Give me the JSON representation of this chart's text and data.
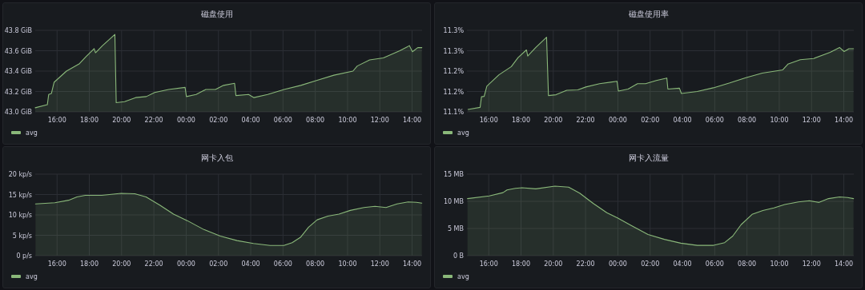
{
  "chart_data": [
    {
      "type": "area",
      "title": "磁盘使用",
      "xlim": [
        "--01-01T14:39",
        "--01-02T14:37"
      ],
      "ylim": [
        43.0,
        43.8
      ],
      "grid": true,
      "legend": "bottom left",
      "xticks": [
        {
          "value": "--01-01T16:00",
          "label": "16:00"
        },
        {
          "value": "--01-01T18:00",
          "label": "18:00"
        },
        {
          "value": "--01-01T20:00",
          "label": "20:00"
        },
        {
          "value": "--01-01T22:00",
          "label": "22:00"
        },
        {
          "value": "--01-02T00:00",
          "label": "00:00"
        },
        {
          "value": "--01-02T02:00",
          "label": "02:00"
        },
        {
          "value": "--01-02T04:00",
          "label": "04:00"
        },
        {
          "value": "--01-02T06:00",
          "label": "06:00"
        },
        {
          "value": "--01-02T08:00",
          "label": "08:00"
        },
        {
          "value": "--01-02T10:00",
          "label": "10:00"
        },
        {
          "value": "--01-02T12:00",
          "label": "12:00"
        },
        {
          "value": "--01-02T14:00",
          "label": "14:00"
        }
      ],
      "yticks": [
        {
          "value": 43.0,
          "label": "43.0 GiB"
        },
        {
          "value": 43.2,
          "label": "43.2 GiB"
        },
        {
          "value": 43.4,
          "label": "43.4 GiB"
        },
        {
          "value": 43.6,
          "label": "43.6 GiB"
        },
        {
          "value": 43.8,
          "label": "43.8 GiB"
        }
      ],
      "series": [
        {
          "name": "avg",
          "color": "#8ab87a",
          "x": [
            "--01-01T14:39",
            "--01-01T15:24",
            "--01-01T15:29",
            "--01-01T15:39",
            "--01-01T15:49",
            "--01-01T16:35",
            "--01-01T17:22",
            "--01-01T17:47",
            "--01-01T18:18",
            "--01-01T18:23",
            "--01-01T18:49",
            "--01-01T19:35",
            "--01-01T19:40",
            "--01-01T20:11",
            "--01-01T20:52",
            "--01-01T21:32",
            "--01-01T22:03",
            "--01-01T22:55",
            "--01-01T23:56",
            "--01-02T00:01",
            "--01-02T00:37",
            "--01-02T01:13",
            "--01-02T01:49",
            "--01-02T02:19",
            "--01-02T03:00",
            "--01-02T03:05",
            "--01-02T03:52",
            "--01-02T04:12",
            "--01-02T05:03",
            "--01-02T06:04",
            "--01-02T07:06",
            "--01-02T08:07",
            "--01-02T09:09",
            "--01-02T10:20",
            "--01-02T10:36",
            "--01-02T11:22",
            "--01-02T12:13",
            "--01-02T13:14",
            "--01-02T13:50",
            "--01-02T14:01",
            "--01-02T14:21",
            "--01-02T14:36"
          ],
          "values": [
            43.04,
            43.07,
            43.17,
            43.18,
            43.29,
            43.4,
            43.47,
            43.54,
            43.62,
            43.58,
            43.65,
            43.76,
            43.09,
            43.1,
            43.14,
            43.15,
            43.19,
            43.22,
            43.24,
            43.15,
            43.17,
            43.22,
            43.22,
            43.26,
            43.28,
            43.16,
            43.17,
            43.14,
            43.17,
            43.22,
            43.26,
            43.31,
            43.36,
            43.4,
            43.45,
            43.51,
            43.53,
            43.6,
            43.65,
            43.59,
            43.63,
            43.63
          ]
        }
      ]
    },
    {
      "type": "area",
      "title": "磁盘使用率",
      "xlim": [
        "--01-01T14:39",
        "--01-02T14:37"
      ],
      "ylim": [
        11.1,
        11.3
      ],
      "grid": true,
      "legend": "bottom left",
      "xticks": [
        {
          "value": "--01-01T16:00",
          "label": "16:00"
        },
        {
          "value": "--01-01T18:00",
          "label": "18:00"
        },
        {
          "value": "--01-01T20:00",
          "label": "20:00"
        },
        {
          "value": "--01-01T22:00",
          "label": "22:00"
        },
        {
          "value": "--01-02T00:00",
          "label": "00:00"
        },
        {
          "value": "--01-02T02:00",
          "label": "02:00"
        },
        {
          "value": "--01-02T04:00",
          "label": "04:00"
        },
        {
          "value": "--01-02T06:00",
          "label": "06:00"
        },
        {
          "value": "--01-02T08:00",
          "label": "08:00"
        },
        {
          "value": "--01-02T10:00",
          "label": "10:00"
        },
        {
          "value": "--01-02T12:00",
          "label": "12:00"
        },
        {
          "value": "--01-02T14:00",
          "label": "14:00"
        }
      ],
      "yticks": [
        {
          "value": 11.1,
          "label": "11.1%"
        },
        {
          "value": 11.15,
          "label": "11.2%"
        },
        {
          "value": 11.2,
          "label": "11.2%"
        },
        {
          "value": 11.25,
          "label": "11.3%"
        },
        {
          "value": 11.3,
          "label": "11.3%"
        }
      ],
      "series": [
        {
          "name": "avg",
          "color": "#8ab87a",
          "x": [
            "--01-01T14:43",
            "--01-01T15:28",
            "--01-01T15:33",
            "--01-01T15:43",
            "--01-01T15:53",
            "--01-01T16:38",
            "--01-01T17:24",
            "--01-01T17:49",
            "--01-01T18:20",
            "--01-01T18:25",
            "--01-01T18:55",
            "--01-01T19:35",
            "--01-01T19:42",
            "--01-01T20:10",
            "--01-01T20:50",
            "--01-01T21:31",
            "--01-01T22:01",
            "--01-01T22:52",
            "--01-01T23:57",
            "--01-02T00:02",
            "--01-02T00:38",
            "--01-02T01:13",
            "--01-02T01:43",
            "--01-02T02:23",
            "--01-02T03:02",
            "--01-02T03:06",
            "--01-02T03:49",
            "--01-02T03:56",
            "--01-02T04:55",
            "--01-02T05:55",
            "--01-02T06:56",
            "--01-02T07:56",
            "--01-02T08:57",
            "--01-02T10:13",
            "--01-02T10:32",
            "--01-02T11:18",
            "--01-02T12:08",
            "--01-02T13:09",
            "--01-02T13:44",
            "--01-02T14:01",
            "--01-02T14:19",
            "--01-02T14:36"
          ],
          "values": [
            11.106,
            11.111,
            11.137,
            11.138,
            11.163,
            11.191,
            11.211,
            11.233,
            11.252,
            11.237,
            11.258,
            11.283,
            11.14,
            11.142,
            11.153,
            11.154,
            11.161,
            11.169,
            11.175,
            11.151,
            11.156,
            11.169,
            11.169,
            11.177,
            11.183,
            11.156,
            11.158,
            11.145,
            11.15,
            11.159,
            11.171,
            11.184,
            11.195,
            11.203,
            11.217,
            11.228,
            11.231,
            11.246,
            11.258,
            11.248,
            11.255,
            11.255
          ]
        }
      ]
    },
    {
      "type": "area",
      "title": "网卡入包",
      "xlim": [
        "--01-01T14:39",
        "--01-02T14:37"
      ],
      "ylim": [
        0,
        20
      ],
      "grid": true,
      "legend": "bottom left",
      "xticks": [
        {
          "value": "--01-01T16:00",
          "label": "16:00"
        },
        {
          "value": "--01-01T18:00",
          "label": "18:00"
        },
        {
          "value": "--01-01T20:00",
          "label": "20:00"
        },
        {
          "value": "--01-01T22:00",
          "label": "22:00"
        },
        {
          "value": "--01-02T00:00",
          "label": "00:00"
        },
        {
          "value": "--01-02T02:00",
          "label": "02:00"
        },
        {
          "value": "--01-02T04:00",
          "label": "04:00"
        },
        {
          "value": "--01-02T06:00",
          "label": "06:00"
        },
        {
          "value": "--01-02T08:00",
          "label": "08:00"
        },
        {
          "value": "--01-02T10:00",
          "label": "10:00"
        },
        {
          "value": "--01-02T12:00",
          "label": "12:00"
        },
        {
          "value": "--01-02T14:00",
          "label": "14:00"
        }
      ],
      "yticks": [
        {
          "value": 0,
          "label": "0 p/s"
        },
        {
          "value": 5,
          "label": "5 kp/s"
        },
        {
          "value": 10,
          "label": "10 kp/s"
        },
        {
          "value": 15,
          "label": "15 kp/s"
        },
        {
          "value": 20,
          "label": "20 kp/s"
        }
      ],
      "series": [
        {
          "name": "avg",
          "color": "#8ab87a",
          "x": [
            "--01-01T14:40",
            "--01-01T15:52",
            "--01-01T16:43",
            "--01-01T17:14",
            "--01-01T17:45",
            "--01-01T18:46",
            "--01-01T19:58",
            "--01-01T20:49",
            "--01-01T21:31",
            "--01-01T22:22",
            "--01-01T23:13",
            "--01-02T00:04",
            "--01-02T01:06",
            "--01-02T02:07",
            "--01-02T03:09",
            "--01-02T04:10",
            "--01-02T05:12",
            "--01-02T06:03",
            "--01-02T06:34",
            "--01-02T07:05",
            "--01-02T07:35",
            "--01-02T08:07",
            "--01-02T08:47",
            "--01-02T09:28",
            "--01-02T10:10",
            "--01-02T11:01",
            "--01-02T11:42",
            "--01-02T12:23",
            "--01-02T13:04",
            "--01-02T13:45",
            "--01-02T14:16",
            "--01-02T14:36"
          ],
          "values": [
            12.7,
            13.0,
            13.6,
            14.4,
            14.8,
            14.8,
            15.3,
            15.2,
            14.4,
            12.4,
            10.2,
            8.6,
            6.4,
            4.8,
            3.7,
            3.0,
            2.5,
            2.5,
            3.2,
            4.5,
            7.0,
            8.8,
            9.7,
            10.2,
            11.1,
            11.8,
            12.1,
            11.8,
            12.7,
            13.2,
            13.1,
            12.9
          ]
        }
      ]
    },
    {
      "type": "area",
      "title": "网卡入流量",
      "xlim": [
        "--01-01T14:39",
        "--01-02T14:37"
      ],
      "ylim": [
        0,
        15
      ],
      "grid": true,
      "legend": "bottom left",
      "xticks": [
        {
          "value": "--01-01T16:00",
          "label": "16:00"
        },
        {
          "value": "--01-01T18:00",
          "label": "18:00"
        },
        {
          "value": "--01-01T20:00",
          "label": "20:00"
        },
        {
          "value": "--01-01T22:00",
          "label": "22:00"
        },
        {
          "value": "--01-02T00:00",
          "label": "00:00"
        },
        {
          "value": "--01-02T02:00",
          "label": "02:00"
        },
        {
          "value": "--01-02T04:00",
          "label": "04:00"
        },
        {
          "value": "--01-02T06:00",
          "label": "06:00"
        },
        {
          "value": "--01-02T08:00",
          "label": "08:00"
        },
        {
          "value": "--01-02T10:00",
          "label": "10:00"
        },
        {
          "value": "--01-02T12:00",
          "label": "12:00"
        },
        {
          "value": "--01-02T14:00",
          "label": "14:00"
        }
      ],
      "yticks": [
        {
          "value": 0,
          "label": "0 B"
        },
        {
          "value": 5,
          "label": "5 MB"
        },
        {
          "value": 10,
          "label": "10 MB"
        },
        {
          "value": 15,
          "label": "15 MB"
        }
      ],
      "series": [
        {
          "name": "avg",
          "color": "#8ab87a",
          "x": [
            "--01-01T14:41",
            "--01-01T16:02",
            "--01-01T16:53",
            "--01-01T17:08",
            "--01-01T17:39",
            "--01-01T18:04",
            "--01-01T18:55",
            "--01-01T20:06",
            "--01-01T20:57",
            "--01-01T21:38",
            "--01-01T22:29",
            "--01-01T23:19",
            "--01-02T00:00",
            "--01-02T00:51",
            "--01-02T01:52",
            "--01-02T02:53",
            "--01-02T03:54",
            "--01-02T04:55",
            "--01-02T05:56",
            "--01-02T06:37",
            "--01-02T07:07",
            "--01-02T07:38",
            "--01-02T08:19",
            "--01-02T08:59",
            "--01-02T09:40",
            "--01-02T10:20",
            "--01-02T11:11",
            "--01-02T11:52",
            "--01-02T12:28",
            "--01-02T13:03",
            "--01-02T13:44",
            "--01-02T14:14",
            "--01-02T14:36"
          ],
          "values": [
            10.5,
            11.0,
            11.6,
            12.1,
            12.4,
            12.5,
            12.3,
            12.8,
            12.6,
            11.5,
            9.6,
            7.9,
            6.9,
            5.5,
            3.9,
            3.0,
            2.3,
            1.9,
            1.9,
            2.4,
            3.6,
            5.7,
            7.6,
            8.3,
            8.8,
            9.4,
            9.9,
            10.1,
            9.8,
            10.5,
            10.8,
            10.7,
            10.5
          ]
        }
      ]
    }
  ]
}
